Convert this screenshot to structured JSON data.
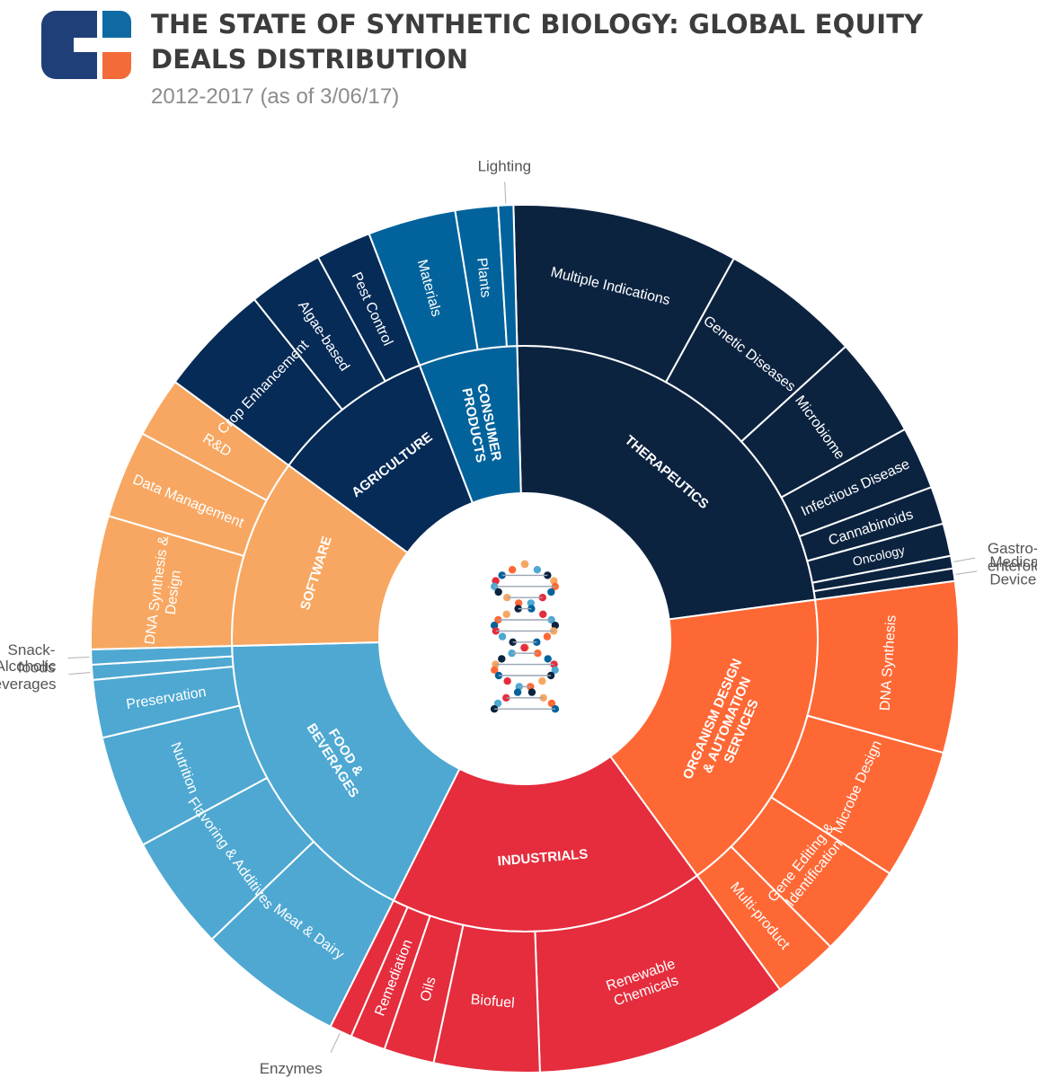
{
  "header": {
    "title": "THE STATE OF SYNTHETIC BIOLOGY: GLOBAL EQUITY DEALS DISTRIBUTION",
    "subtitle": "2012-2017 (as of 3/06/17)",
    "logo_colors": [
      "#1f3f78",
      "#0f6aa3",
      "#f26b38"
    ]
  },
  "center_icon": "dna-helix-icon",
  "chart_data": {
    "type": "sunburst",
    "title": "THE STATE OF SYNTHETIC BIOLOGY: GLOBAL EQUITY DEALS DISTRIBUTION",
    "subtitle": "2012-2017 (as of 3/06/17)",
    "unit": "% of deals",
    "categories": [
      {
        "name": "THERAPEUTICS",
        "color": "#0c2340",
        "text_color": "#ffffff",
        "children": [
          {
            "name": "Multiple Indications",
            "value": 9.0
          },
          {
            "name": "Genetic Diseases",
            "value": 5.6
          },
          {
            "name": "Microbiome",
            "value": 4.0
          },
          {
            "name": "Infectious Disease",
            "value": 2.5
          },
          {
            "name": "Cannabinoids",
            "value": 1.5
          },
          {
            "name": "Oncology",
            "value": 1.3
          },
          {
            "name": "Gastro-enterology",
            "value": 0.5
          },
          {
            "name": "Medical Devices",
            "value": 0.5
          }
        ]
      },
      {
        "name": "ORGANISM DESIGN & AUTOMATION SERVICES",
        "color": "#fe6835",
        "text_color": "#ffffff",
        "children": [
          {
            "name": "DNA Synthesis",
            "value": 6.8
          },
          {
            "name": "Microbe Design",
            "value": 5.2
          },
          {
            "name": "Gene Editing & Identification",
            "value": 3.7
          },
          {
            "name": "Multi-product",
            "value": 2.6
          }
        ]
      },
      {
        "name": "INDUSTRIALS",
        "color": "#e52d3d",
        "text_color": "#ffffff",
        "children": [
          {
            "name": "Renewable Chemicals",
            "value": 10.1
          },
          {
            "name": "Biofuel",
            "value": 4.2
          },
          {
            "name": "Oils",
            "value": 2.0
          },
          {
            "name": "Remediation",
            "value": 1.4
          },
          {
            "name": "Enzymes",
            "value": 0.9
          }
        ]
      },
      {
        "name": "FOOD & BEVERAGES",
        "color": "#4ea8d2",
        "text_color": "#ffffff",
        "children": [
          {
            "name": "Meat & Dairy",
            "value": 5.8
          },
          {
            "name": "Flavoring & Additives",
            "value": 4.6
          },
          {
            "name": "Nutrition",
            "value": 4.5
          },
          {
            "name": "Preservation",
            "value": 2.3
          },
          {
            "name": "Alcoholic Beverages",
            "value": 0.6
          },
          {
            "name": "Snack-foods",
            "value": 0.6
          }
        ]
      },
      {
        "name": "SOFTWARE",
        "color": "#f7a761",
        "text_color": "#ffffff",
        "children": [
          {
            "name": "DNA Synthesis & Design",
            "value": 5.3
          },
          {
            "name": "Data Management",
            "value": 3.5
          },
          {
            "name": "R&D",
            "value": 2.4
          }
        ]
      },
      {
        "name": "AGRICULTURE",
        "color": "#062b57",
        "text_color": "#ffffff",
        "children": [
          {
            "name": "Crop Enhancement",
            "value": 4.5
          },
          {
            "name": "Algae-based",
            "value": 3.0
          },
          {
            "name": "Pest Control",
            "value": 2.2
          }
        ]
      },
      {
        "name": "CONSUMER PRODUCTS",
        "color": "#02639c",
        "text_color": "#ffffff",
        "children": [
          {
            "name": "Materials",
            "value": 3.5
          },
          {
            "name": "Plants",
            "value": 1.7
          },
          {
            "name": "Lighting",
            "value": 0.6
          }
        ]
      }
    ],
    "callout_labels": {
      "Lighting": "Lighting",
      "Gastro-enterology": "Gastro-\nenterology",
      "Medical Devices": "Medical\nDevices",
      "Snack-foods": "Snack-\nfoods",
      "Alcoholic Beverages": "Alcoholic\nBeverages",
      "Enzymes": "Enzymes"
    },
    "wrapped_labels": {
      "DNA Synthesis & Design": "DNA Synthesis &\nDesign",
      "Gene Editing & Identification": "Gene Editing &\nIdentification",
      "Renewable Chemicals": "Renewable\nChemicals"
    },
    "category_labels": {
      "THERAPEUTICS": "THERAPEUTICS",
      "ORGANISM DESIGN & AUTOMATION SERVICES": "ORGANISM DESIGN\n& AUTOMATION\nSERVICES",
      "INDUSTRIALS": "INDUSTRIALS",
      "FOOD & BEVERAGES": "FOOD &\nBEVERAGES",
      "SOFTWARE": "SOFTWARE",
      "AGRICULTURE": "AGRICULTURE",
      "CONSUMER PRODUCTS": "CONSUMER\nPRODUCTS"
    }
  }
}
